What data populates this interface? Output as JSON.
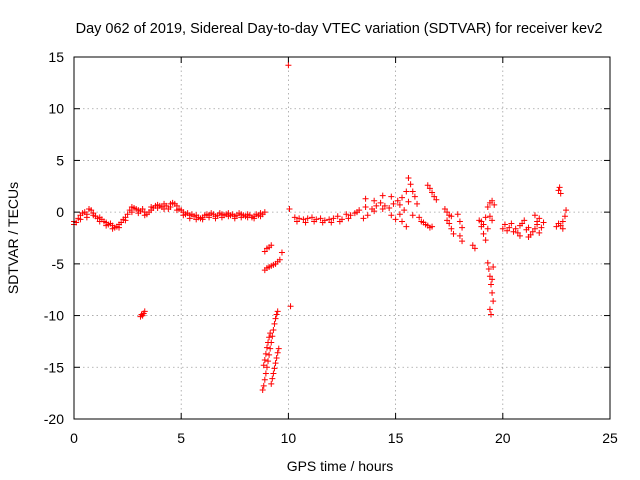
{
  "chart_data": {
    "type": "scatter",
    "title": "Day 062 of 2019, Sidereal Day-to-day VTEC variation (SDTVAR) for receiver kev2",
    "xlabel": "GPS time / hours",
    "ylabel": "SDTVAR / TECUs",
    "xlim": [
      0,
      25
    ],
    "ylim": [
      -20,
      15
    ],
    "x_ticks": [
      0,
      5,
      10,
      15,
      20,
      25
    ],
    "y_ticks": [
      -20,
      -15,
      -10,
      -5,
      0,
      5,
      10,
      15
    ],
    "x_tick_labels": [
      "0",
      "5",
      "10",
      "15",
      "20",
      "25"
    ],
    "y_tick_labels": [
      "-20",
      "-15",
      "-10",
      "-5",
      "0",
      "5",
      "10",
      "15"
    ],
    "grid": true,
    "marker": "+",
    "color": "#ff0000",
    "series": [
      {
        "name": "kev2",
        "points": [
          [
            0.0,
            -1.2
          ],
          [
            0.1,
            -1.0
          ],
          [
            0.2,
            -0.6
          ],
          [
            0.3,
            -0.3
          ],
          [
            0.4,
            -0.1
          ],
          [
            0.5,
            0.0
          ],
          [
            0.6,
            -0.2
          ],
          [
            0.7,
            0.3
          ],
          [
            0.8,
            0.2
          ],
          [
            0.9,
            -0.1
          ],
          [
            1.0,
            -0.4
          ],
          [
            1.1,
            -0.6
          ],
          [
            1.2,
            -0.5
          ],
          [
            1.3,
            -0.7
          ],
          [
            1.4,
            -0.9
          ],
          [
            1.5,
            -1.0
          ],
          [
            1.6,
            -1.2
          ],
          [
            1.7,
            -1.1
          ],
          [
            1.8,
            -1.3
          ],
          [
            1.9,
            -1.5
          ],
          [
            2.0,
            -1.4
          ],
          [
            2.1,
            -1.2
          ],
          [
            2.2,
            -1.0
          ],
          [
            2.3,
            -0.7
          ],
          [
            2.4,
            -0.5
          ],
          [
            2.5,
            -0.2
          ],
          [
            2.6,
            0.2
          ],
          [
            2.7,
            0.5
          ],
          [
            2.8,
            0.4
          ],
          [
            2.9,
            0.3
          ],
          [
            3.0,
            0.2
          ],
          [
            3.1,
            0.1
          ],
          [
            3.2,
            0.3
          ],
          [
            3.3,
            0.0
          ],
          [
            3.4,
            -0.2
          ],
          [
            3.5,
            0.0
          ],
          [
            3.6,
            0.2
          ],
          [
            3.7,
            0.4
          ],
          [
            3.8,
            0.6
          ],
          [
            3.9,
            0.7
          ],
          [
            4.0,
            0.6
          ],
          [
            4.1,
            0.5
          ],
          [
            4.2,
            0.8
          ],
          [
            4.3,
            0.6
          ],
          [
            4.4,
            0.3
          ],
          [
            4.5,
            0.5
          ],
          [
            4.6,
            0.9
          ],
          [
            4.7,
            0.8
          ],
          [
            4.8,
            0.6
          ],
          [
            4.9,
            0.3
          ],
          [
            5.0,
            0.2
          ],
          [
            5.1,
            0.0
          ],
          [
            5.2,
            -0.2
          ],
          [
            5.3,
            -0.1
          ],
          [
            5.4,
            -0.3
          ],
          [
            5.5,
            -0.2
          ],
          [
            5.6,
            -0.4
          ],
          [
            5.7,
            -0.3
          ],
          [
            5.8,
            -0.5
          ],
          [
            5.9,
            -0.6
          ],
          [
            6.0,
            -0.5
          ],
          [
            6.1,
            -0.3
          ],
          [
            6.2,
            -0.2
          ],
          [
            6.3,
            -0.3
          ],
          [
            6.4,
            -0.1
          ],
          [
            6.5,
            -0.2
          ],
          [
            6.6,
            -0.4
          ],
          [
            6.7,
            -0.3
          ],
          [
            6.8,
            -0.1
          ],
          [
            6.9,
            -0.2
          ],
          [
            7.0,
            -0.3
          ],
          [
            7.1,
            -0.2
          ],
          [
            7.2,
            -0.1
          ],
          [
            7.3,
            -0.3
          ],
          [
            7.4,
            -0.2
          ],
          [
            7.5,
            -0.4
          ],
          [
            7.6,
            -0.3
          ],
          [
            7.7,
            -0.1
          ],
          [
            7.8,
            -0.2
          ],
          [
            7.9,
            -0.3
          ],
          [
            8.0,
            -0.4
          ],
          [
            8.1,
            -0.2
          ],
          [
            8.2,
            -0.3
          ],
          [
            8.3,
            -0.5
          ],
          [
            8.4,
            -0.4
          ],
          [
            8.5,
            -0.2
          ],
          [
            8.6,
            -0.3
          ],
          [
            8.7,
            -0.1
          ],
          [
            8.8,
            -0.2
          ],
          [
            8.9,
            0.0
          ],
          [
            0.0,
            -0.9
          ],
          [
            0.3,
            -0.7
          ],
          [
            0.6,
            -0.5
          ],
          [
            0.9,
            -0.3
          ],
          [
            1.2,
            -0.9
          ],
          [
            1.5,
            -1.3
          ],
          [
            1.8,
            -1.6
          ],
          [
            2.1,
            -1.5
          ],
          [
            2.4,
            -0.8
          ],
          [
            2.7,
            0.0
          ],
          [
            3.0,
            -0.1
          ],
          [
            3.3,
            -0.3
          ],
          [
            3.6,
            0.5
          ],
          [
            3.9,
            0.4
          ],
          [
            4.2,
            0.3
          ],
          [
            4.5,
            0.8
          ],
          [
            4.8,
            0.2
          ],
          [
            5.1,
            -0.3
          ],
          [
            5.4,
            -0.6
          ],
          [
            5.7,
            -0.7
          ],
          [
            6.0,
            -0.7
          ],
          [
            6.3,
            -0.5
          ],
          [
            6.6,
            -0.6
          ],
          [
            6.9,
            -0.5
          ],
          [
            7.2,
            -0.4
          ],
          [
            7.5,
            -0.6
          ],
          [
            7.8,
            -0.5
          ],
          [
            8.1,
            -0.5
          ],
          [
            8.4,
            -0.6
          ],
          [
            8.7,
            -0.4
          ],
          [
            3.1,
            -10.1
          ],
          [
            3.15,
            -9.9
          ],
          [
            3.2,
            -10.0
          ],
          [
            3.25,
            -9.8
          ],
          [
            3.3,
            -9.6
          ],
          [
            8.8,
            -17.2
          ],
          [
            8.85,
            -16.8
          ],
          [
            8.9,
            -16.2
          ],
          [
            8.95,
            -15.6
          ],
          [
            9.0,
            -15.0
          ],
          [
            9.05,
            -14.4
          ],
          [
            9.1,
            -13.8
          ],
          [
            9.15,
            -13.2
          ],
          [
            9.2,
            -12.6
          ],
          [
            9.25,
            -12.0
          ],
          [
            9.3,
            -11.4
          ],
          [
            9.35,
            -10.8
          ],
          [
            9.4,
            -10.3
          ],
          [
            9.45,
            -9.9
          ],
          [
            9.5,
            -9.6
          ],
          [
            8.85,
            -14.8
          ],
          [
            8.9,
            -14.3
          ],
          [
            8.95,
            -13.7
          ],
          [
            9.0,
            -13.1
          ],
          [
            9.05,
            -12.6
          ],
          [
            9.1,
            -12.1
          ],
          [
            9.15,
            -11.7
          ],
          [
            9.2,
            -16.6
          ],
          [
            9.25,
            -16.1
          ],
          [
            9.3,
            -15.6
          ],
          [
            9.35,
            -15.1
          ],
          [
            9.4,
            -14.6
          ],
          [
            9.45,
            -14.1
          ],
          [
            9.5,
            -13.6
          ],
          [
            9.55,
            -13.2
          ],
          [
            8.9,
            -3.8
          ],
          [
            9.0,
            -3.5
          ],
          [
            9.1,
            -3.4
          ],
          [
            9.2,
            -3.2
          ],
          [
            8.9,
            -5.6
          ],
          [
            9.0,
            -5.4
          ],
          [
            9.1,
            -5.3
          ],
          [
            9.2,
            -5.2
          ],
          [
            9.3,
            -5.1
          ],
          [
            9.4,
            -5.0
          ],
          [
            9.5,
            -4.8
          ],
          [
            9.6,
            -4.6
          ],
          [
            9.7,
            -3.9
          ],
          [
            10.0,
            14.2
          ],
          [
            10.05,
            0.3
          ],
          [
            10.1,
            -9.1
          ],
          [
            10.3,
            -0.5
          ],
          [
            10.5,
            -0.6
          ],
          [
            10.7,
            -0.7
          ],
          [
            10.9,
            -0.6
          ],
          [
            11.1,
            -0.5
          ],
          [
            11.3,
            -0.7
          ],
          [
            11.5,
            -0.6
          ],
          [
            11.7,
            -0.8
          ],
          [
            11.9,
            -0.7
          ],
          [
            12.1,
            -0.6
          ],
          [
            12.3,
            -0.4
          ],
          [
            12.5,
            -0.7
          ],
          [
            12.7,
            -0.2
          ],
          [
            12.9,
            -0.3
          ],
          [
            13.1,
            -0.1
          ],
          [
            13.3,
            0.2
          ],
          [
            13.5,
            -0.6
          ],
          [
            13.7,
            -0.3
          ],
          [
            13.9,
            0.3
          ],
          [
            14.1,
            0.6
          ],
          [
            14.3,
            0.9
          ],
          [
            14.5,
            0.6
          ],
          [
            14.7,
            0.4
          ],
          [
            14.9,
            0.8
          ],
          [
            15.1,
            1.1
          ],
          [
            15.3,
            1.4
          ],
          [
            15.5,
            2.0
          ],
          [
            15.6,
            3.3
          ],
          [
            15.7,
            2.7
          ],
          [
            15.8,
            2.0
          ],
          [
            10.4,
            -0.9
          ],
          [
            10.8,
            -1.0
          ],
          [
            11.2,
            -0.9
          ],
          [
            11.6,
            -1.0
          ],
          [
            12.0,
            -1.0
          ],
          [
            12.4,
            -0.9
          ],
          [
            12.8,
            -0.6
          ],
          [
            13.2,
            0.0
          ],
          [
            13.6,
            0.5
          ],
          [
            14.0,
            0.1
          ],
          [
            14.4,
            0.3
          ],
          [
            14.8,
            -0.3
          ],
          [
            15.0,
            -0.7
          ],
          [
            15.2,
            -0.2
          ],
          [
            15.4,
            0.2
          ],
          [
            15.6,
            1.0
          ],
          [
            15.9,
            1.5
          ],
          [
            16.0,
            0.8
          ],
          [
            16.1,
            -0.5
          ],
          [
            16.2,
            -0.9
          ],
          [
            13.6,
            1.3
          ],
          [
            14.0,
            1.1
          ],
          [
            14.4,
            1.6
          ],
          [
            14.8,
            1.5
          ],
          [
            15.2,
            0.7
          ],
          [
            15.8,
            -0.3
          ],
          [
            15.3,
            -0.9
          ],
          [
            15.5,
            -1.4
          ],
          [
            16.3,
            -1.0
          ],
          [
            16.4,
            -1.2
          ],
          [
            16.5,
            -1.3
          ],
          [
            16.6,
            -1.5
          ],
          [
            16.7,
            -1.4
          ],
          [
            16.5,
            2.6
          ],
          [
            16.6,
            2.3
          ],
          [
            16.7,
            1.9
          ],
          [
            16.8,
            1.5
          ],
          [
            16.9,
            1.2
          ],
          [
            17.3,
            0.3
          ],
          [
            17.4,
            0.0
          ],
          [
            17.5,
            -0.3
          ],
          [
            17.4,
            -0.8
          ],
          [
            17.5,
            -1.1
          ],
          [
            17.6,
            -1.6
          ],
          [
            17.7,
            -2.1
          ],
          [
            17.6,
            -0.4
          ],
          [
            17.9,
            -0.2
          ],
          [
            18.0,
            -0.9
          ],
          [
            18.1,
            -1.5
          ],
          [
            18.0,
            -2.3
          ],
          [
            18.1,
            -2.8
          ],
          [
            18.6,
            -3.2
          ],
          [
            18.7,
            -3.5
          ],
          [
            18.9,
            -0.8
          ],
          [
            19.0,
            -1.4
          ],
          [
            19.1,
            -2.1
          ],
          [
            19.2,
            -2.7
          ],
          [
            19.0,
            -0.9
          ],
          [
            19.1,
            -1.2
          ],
          [
            19.2,
            -0.5
          ],
          [
            19.3,
            -1.6
          ],
          [
            19.4,
            -0.4
          ],
          [
            19.5,
            -0.8
          ],
          [
            19.3,
            0.5
          ],
          [
            19.4,
            0.9
          ],
          [
            19.5,
            1.1
          ],
          [
            19.6,
            0.7
          ],
          [
            19.3,
            -4.9
          ],
          [
            19.35,
            -5.5
          ],
          [
            19.4,
            -6.2
          ],
          [
            19.45,
            -7.0
          ],
          [
            19.5,
            -7.8
          ],
          [
            19.55,
            -8.6
          ],
          [
            19.4,
            -9.4
          ],
          [
            19.45,
            -9.9
          ],
          [
            19.5,
            -6.5
          ],
          [
            19.55,
            -5.3
          ],
          [
            20.0,
            -1.6
          ],
          [
            20.1,
            -1.2
          ],
          [
            20.2,
            -1.8
          ],
          [
            20.3,
            -1.5
          ],
          [
            20.4,
            -1.1
          ],
          [
            20.5,
            -1.9
          ],
          [
            20.6,
            -1.6
          ],
          [
            20.7,
            -2.0
          ],
          [
            20.8,
            -1.3
          ],
          [
            20.9,
            -1.1
          ],
          [
            21.0,
            -0.8
          ],
          [
            21.1,
            -1.7
          ],
          [
            21.2,
            -2.4
          ],
          [
            21.3,
            -2.2
          ],
          [
            21.4,
            -1.9
          ],
          [
            21.5,
            -1.6
          ],
          [
            21.6,
            -1.2
          ],
          [
            21.7,
            -0.6
          ],
          [
            21.8,
            -1.5
          ],
          [
            21.9,
            -1.0
          ],
          [
            21.5,
            -0.3
          ],
          [
            21.6,
            -0.9
          ],
          [
            21.7,
            -2.0
          ],
          [
            21.2,
            -1.5
          ],
          [
            20.8,
            -2.3
          ],
          [
            22.5,
            -1.4
          ],
          [
            22.6,
            -1.1
          ],
          [
            22.7,
            -1.3
          ],
          [
            22.8,
            -0.9
          ],
          [
            22.9,
            -0.4
          ],
          [
            22.95,
            0.2
          ],
          [
            22.8,
            -1.6
          ],
          [
            22.6,
            2.1
          ],
          [
            22.65,
            2.4
          ],
          [
            22.7,
            1.8
          ]
        ]
      }
    ]
  }
}
